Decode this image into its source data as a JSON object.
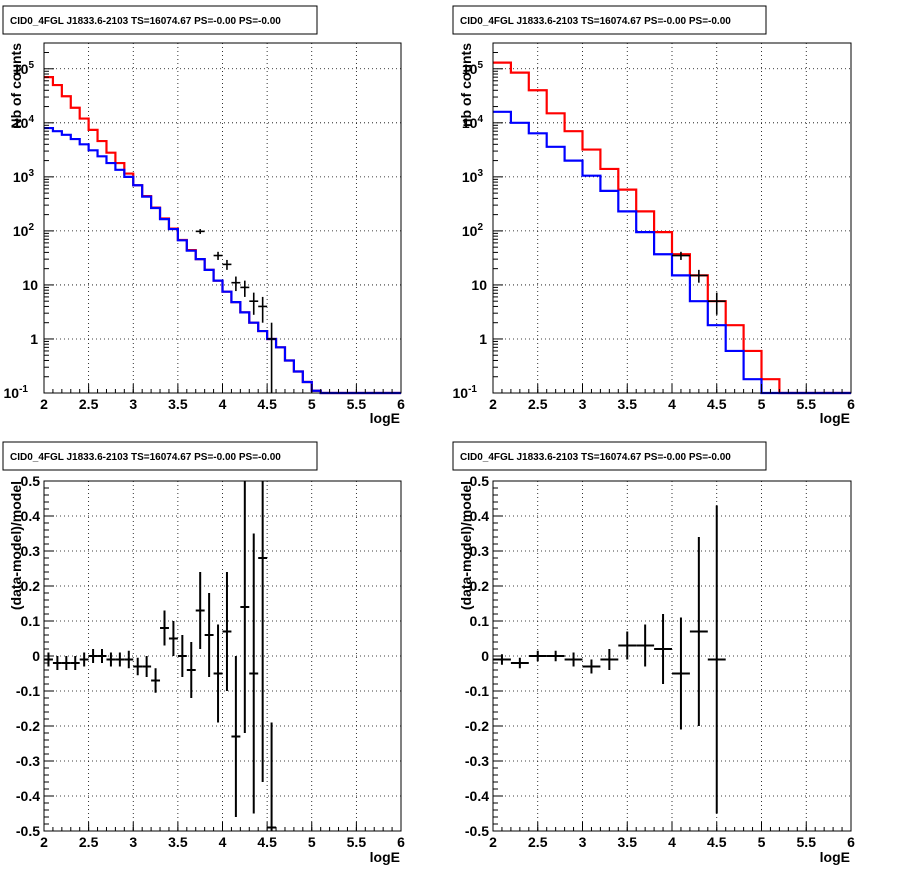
{
  "page": {
    "title": ""
  },
  "chart_data": [
    {
      "type": "line",
      "title": "CID0_4FGL J1833.6-2103 TS=16074.67 PS=-0.00 PS=-0.00",
      "xlabel": "logE",
      "ylabel": "Nb of counts",
      "xlim": [
        2,
        6
      ],
      "ylim": [
        0.1,
        300000
      ],
      "yscale": "log",
      "grid": true,
      "xticks": [
        "2",
        "2.5",
        "3",
        "3.5",
        "4",
        "4.5",
        "5",
        "5.5",
        "6"
      ],
      "yticks": [
        {
          "value": 0.1,
          "label": "10",
          "exp": "-1"
        },
        {
          "value": 1,
          "label": "1",
          "exp": ""
        },
        {
          "value": 10,
          "label": "10",
          "exp": ""
        },
        {
          "value": 100,
          "label": "10",
          "exp": "2"
        },
        {
          "value": 1000,
          "label": "10",
          "exp": "3"
        },
        {
          "value": 10000,
          "label": "10",
          "exp": "4"
        },
        {
          "value": 100000,
          "label": "10",
          "exp": "5"
        }
      ],
      "bin_edges": [
        2.0,
        2.1,
        2.2,
        2.3,
        2.4,
        2.5,
        2.6,
        2.7,
        2.8,
        2.9,
        3.0,
        3.1,
        3.2,
        3.3,
        3.4,
        3.5,
        3.6,
        3.7,
        3.8,
        3.9,
        4.0,
        4.1,
        4.2,
        4.3,
        4.4,
        4.5,
        4.6,
        4.7,
        4.8,
        4.9,
        5.0,
        5.1,
        5.2,
        5.3,
        5.4,
        5.5,
        5.6,
        5.7,
        5.8,
        5.9,
        6.0
      ],
      "series": [
        {
          "kind": "model",
          "color": "#ff0000",
          "values": [
            70000,
            50000,
            31000,
            19000,
            12000,
            7400,
            4600,
            2800,
            1800,
            1150,
            700,
            440,
            270,
            170,
            110,
            68,
            44,
            30,
            19,
            12,
            7.5,
            4.8,
            3.1,
            2.0,
            1.4,
            1.0,
            0.7,
            0.4,
            0.25,
            0.16,
            0.11,
            0.1,
            0.1,
            0.1,
            0.1,
            0.1,
            0.1,
            0.1,
            0.1,
            0.1
          ]
        },
        {
          "kind": "model",
          "color": "#0000ff",
          "values": [
            8000,
            7000,
            6000,
            5000,
            4000,
            3100,
            2400,
            1800,
            1350,
            1000,
            700,
            430,
            265,
            165,
            108,
            67,
            43,
            30,
            19,
            12,
            7.5,
            4.8,
            3.1,
            2.0,
            1.4,
            1.0,
            0.7,
            0.4,
            0.25,
            0.16,
            0.11,
            0.1,
            0.1,
            0.1,
            0.1,
            0.1,
            0.1,
            0.1,
            0.1,
            0.1
          ]
        },
        {
          "kind": "data",
          "color": "#000000",
          "x": [
            3.75,
            3.95,
            4.05,
            4.15,
            4.25,
            4.35,
            4.45,
            4.55
          ],
          "y": [
            98,
            35,
            24,
            11,
            9,
            5,
            4,
            1
          ],
          "yerr_low": [
            10,
            6,
            5,
            3.3,
            3,
            2.2,
            2,
            0.95
          ],
          "yerr_high": [
            10,
            6,
            5,
            3.3,
            3,
            2.2,
            2,
            1.0
          ],
          "xerr": 0.05
        }
      ]
    },
    {
      "type": "line",
      "title": "CID0_4FGL J1833.6-2103 TS=16074.67 PS=-0.00 PS=-0.00",
      "xlabel": "logE",
      "ylabel": "nb of counts",
      "xlim": [
        2,
        6
      ],
      "ylim": [
        0.1,
        300000
      ],
      "yscale": "log",
      "grid": true,
      "xticks": [
        "2",
        "2.5",
        "3",
        "3.5",
        "4",
        "4.5",
        "5",
        "5.5",
        "6"
      ],
      "yticks": [
        {
          "value": 0.1,
          "label": "10",
          "exp": "-1"
        },
        {
          "value": 1,
          "label": "1",
          "exp": ""
        },
        {
          "value": 10,
          "label": "10",
          "exp": ""
        },
        {
          "value": 100,
          "label": "10",
          "exp": "2"
        },
        {
          "value": 1000,
          "label": "10",
          "exp": "3"
        },
        {
          "value": 10000,
          "label": "10",
          "exp": "4"
        },
        {
          "value": 100000,
          "label": "10",
          "exp": "5"
        }
      ],
      "bin_edges": [
        2.0,
        2.2,
        2.4,
        2.6,
        2.8,
        3.0,
        3.2,
        3.4,
        3.6,
        3.8,
        4.0,
        4.2,
        4.4,
        4.6,
        4.8,
        5.0,
        5.2,
        5.4,
        5.6,
        5.8,
        6.0
      ],
      "series": [
        {
          "kind": "model",
          "color": "#ff0000",
          "values": [
            130000,
            85000,
            40000,
            15000,
            7000,
            3200,
            1400,
            580,
            230,
            95,
            37,
            15,
            5,
            1.8,
            0.6,
            0.18,
            0.1,
            0.1,
            0.1,
            0.1
          ]
        },
        {
          "kind": "model",
          "color": "#0000ff",
          "values": [
            16000,
            10000,
            6400,
            3600,
            2000,
            1050,
            550,
            230,
            95,
            37,
            15,
            5,
            1.8,
            0.6,
            0.18,
            0.1,
            0.1,
            0.1,
            0.1,
            0.1
          ]
        },
        {
          "kind": "data",
          "color": "#000000",
          "x": [
            4.1,
            4.3,
            4.5
          ],
          "y": [
            35,
            15,
            5
          ],
          "yerr_low": [
            6,
            4,
            2.2
          ],
          "yerr_high": [
            6,
            4,
            2.2
          ],
          "xerr": 0.1
        }
      ]
    },
    {
      "type": "scatter",
      "title": "CID0_4FGL J1833.6-2103 TS=16074.67 PS=-0.00 PS=-0.00",
      "xlabel": "logE",
      "ylabel": "(data-model)/model",
      "xlim": [
        2,
        6
      ],
      "ylim": [
        -0.5,
        0.5
      ],
      "grid": true,
      "xticks": [
        "2",
        "2.5",
        "3",
        "3.5",
        "4",
        "4.5",
        "5",
        "5.5",
        "6"
      ],
      "yticks": [
        "-0.5",
        "-0.4",
        "-0.3",
        "-0.2",
        "-0.1",
        "0",
        "0.1",
        "0.2",
        "0.3",
        "0.4",
        "0.5"
      ],
      "series": [
        {
          "kind": "residual",
          "color": "#000000",
          "x": [
            2.05,
            2.15,
            2.25,
            2.35,
            2.45,
            2.55,
            2.65,
            2.75,
            2.85,
            2.95,
            3.05,
            3.15,
            3.25,
            3.35,
            3.45,
            3.55,
            3.65,
            3.75,
            3.85,
            3.95,
            4.05,
            4.15,
            4.25,
            4.35,
            4.45,
            4.55
          ],
          "y": [
            -0.01,
            -0.02,
            -0.02,
            -0.02,
            -0.01,
            0.0,
            0.0,
            -0.01,
            -0.01,
            -0.01,
            -0.03,
            -0.03,
            -0.07,
            0.08,
            0.05,
            0.0,
            -0.04,
            0.13,
            0.06,
            -0.05,
            0.07,
            -0.23,
            0.14,
            -0.05,
            0.28,
            -0.49
          ],
          "yerr": [
            0.02,
            0.02,
            0.02,
            0.02,
            0.02,
            0.02,
            0.02,
            0.02,
            0.02,
            0.025,
            0.025,
            0.03,
            0.035,
            0.05,
            0.05,
            0.06,
            0.08,
            0.11,
            0.12,
            0.14,
            0.17,
            0.23,
            0.36,
            0.4,
            0.64,
            0.3
          ],
          "xerr": 0.05
        }
      ]
    },
    {
      "type": "scatter",
      "title": "CID0_4FGL J1833.6-2103 TS=16074.67 PS=-0.00 PS=-0.00",
      "xlabel": "logE",
      "ylabel": "(data-model)/model",
      "xlim": [
        2,
        6
      ],
      "ylim": [
        -0.5,
        0.5
      ],
      "grid": true,
      "xticks": [
        "2",
        "2.5",
        "3",
        "3.5",
        "4",
        "4.5",
        "5",
        "5.5",
        "6"
      ],
      "yticks": [
        "-0.5",
        "-0.4",
        "-0.3",
        "-0.2",
        "-0.1",
        "0",
        "0.1",
        "0.2",
        "0.3",
        "0.4",
        "0.5"
      ],
      "series": [
        {
          "kind": "residual",
          "color": "#000000",
          "x": [
            2.1,
            2.3,
            2.5,
            2.7,
            2.9,
            3.1,
            3.3,
            3.5,
            3.7,
            3.9,
            4.1,
            4.3,
            4.5
          ],
          "y": [
            -0.01,
            -0.02,
            0.0,
            0.0,
            -0.01,
            -0.03,
            -0.01,
            0.03,
            0.03,
            0.02,
            -0.05,
            0.07,
            -0.01
          ],
          "yerr": [
            0.015,
            0.015,
            0.015,
            0.015,
            0.02,
            0.02,
            0.03,
            0.04,
            0.06,
            0.1,
            0.16,
            0.27,
            0.44
          ],
          "xerr": 0.1
        }
      ]
    }
  ]
}
